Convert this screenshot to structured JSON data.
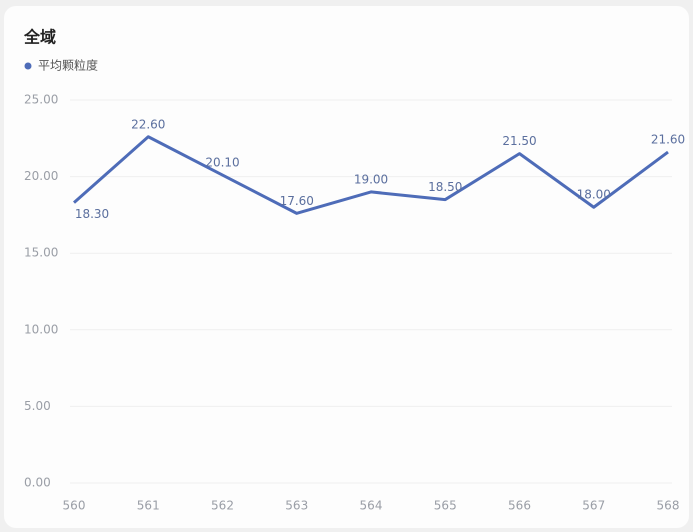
{
  "chart_data": {
    "type": "line",
    "title": "全域",
    "categories": [
      "560",
      "561",
      "562",
      "563",
      "564",
      "565",
      "566",
      "567",
      "568"
    ],
    "series": [
      {
        "name": "平均颗粒度",
        "color": "#4e6cb8",
        "values": [
          18.3,
          22.6,
          20.1,
          17.6,
          19.0,
          18.5,
          21.5,
          18.0,
          21.6
        ],
        "value_labels": [
          "18.30",
          "22.60",
          "20.10",
          "17.60",
          "19.00",
          "18.50",
          "21.50",
          "18.00",
          "21.60"
        ]
      }
    ],
    "ylim": [
      0,
      25
    ],
    "yticks": [
      {
        "value": 0,
        "label": "0.00"
      },
      {
        "value": 5,
        "label": "5.00"
      },
      {
        "value": 10,
        "label": "10.00"
      },
      {
        "value": 15,
        "label": "15.00"
      },
      {
        "value": 20,
        "label": "20.00"
      },
      {
        "value": 25,
        "label": "25.00"
      }
    ],
    "grid": true
  }
}
